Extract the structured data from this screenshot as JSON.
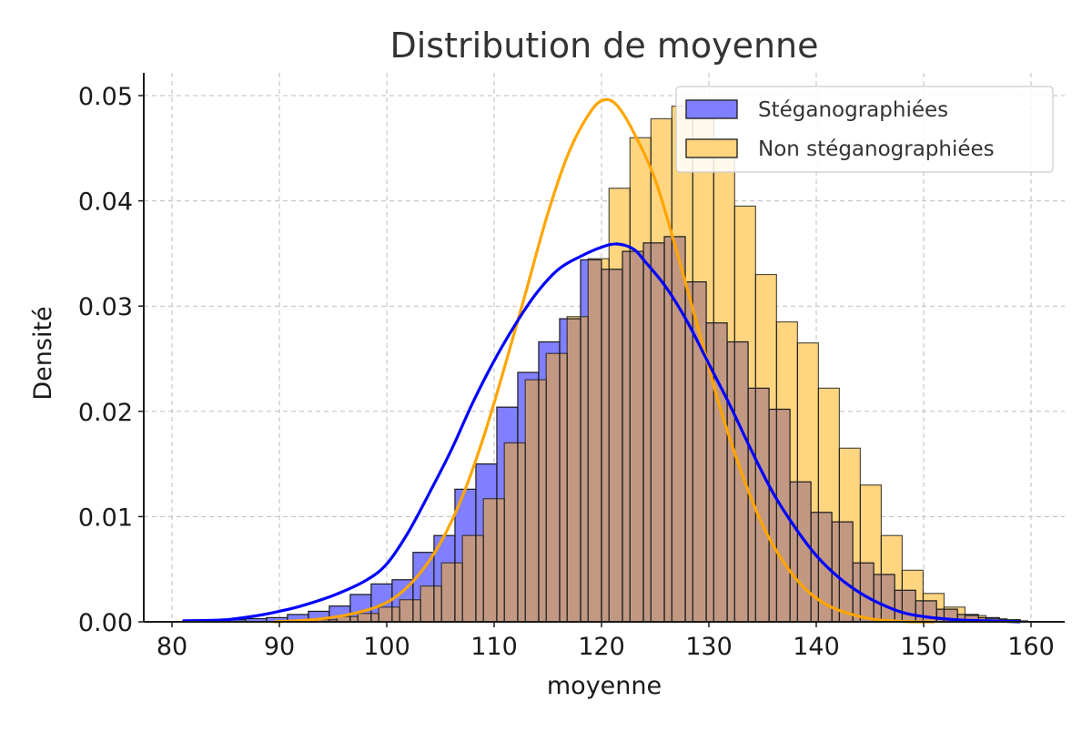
{
  "chart_data": {
    "type": "histogram",
    "title": "Distribution de moyenne",
    "xlabel": "moyenne",
    "ylabel": "Densité",
    "xlim": [
      77.8,
      163
    ],
    "ylim": [
      0,
      0.052
    ],
    "xticks": [
      80,
      90,
      100,
      110,
      120,
      130,
      140,
      150,
      160
    ],
    "yticks": [
      0.0,
      0.01,
      0.02,
      0.03,
      0.04,
      0.05
    ],
    "ytick_labels": [
      "0.00",
      "0.01",
      "0.02",
      "0.03",
      "0.04",
      "0.05"
    ],
    "grid": true,
    "legend": {
      "position": "top-right"
    },
    "colors": {
      "stego_fill": "#7f7fff",
      "stego_line": "#0000ff",
      "nonstego_fill": "#ffd580",
      "nonstego_line": "#ffa500",
      "overlap_fill": "#c29883",
      "bar_edge": "#1a1a1a"
    },
    "series": [
      {
        "name": "Stéganographiées",
        "bin_start": 81,
        "bin_width": 1.95,
        "values": [
          0.0001,
          0.0001,
          0.0002,
          0.0003,
          0.0004,
          0.0007,
          0.001,
          0.0015,
          0.0026,
          0.0036,
          0.004,
          0.0066,
          0.0082,
          0.0126,
          0.015,
          0.0204,
          0.0237,
          0.0266,
          0.0288,
          0.0344,
          0.0335,
          0.0352,
          0.036,
          0.0366,
          0.0323,
          0.0284,
          0.0266,
          0.0222,
          0.0202,
          0.0133,
          0.0104,
          0.0095,
          0.0056,
          0.0045,
          0.003,
          0.002,
          0.0012,
          0.0007,
          0.0004,
          0.0002
        ],
        "kde_x": [
          81,
          85,
          88,
          90,
          92,
          95,
          98,
          100,
          102,
          104,
          106,
          108,
          110,
          112,
          114,
          116,
          118,
          120,
          121.5,
          123,
          124,
          126,
          128,
          130,
          132,
          134,
          136,
          138,
          140,
          142,
          144,
          146,
          148,
          150,
          153,
          156,
          159
        ],
        "kde_y": [
          0.0001,
          0.0002,
          0.0006,
          0.001,
          0.0015,
          0.0025,
          0.0039,
          0.0055,
          0.0085,
          0.0123,
          0.0163,
          0.0208,
          0.0248,
          0.0283,
          0.0313,
          0.0335,
          0.0347,
          0.0356,
          0.0359,
          0.0354,
          0.0343,
          0.0318,
          0.0285,
          0.0245,
          0.0205,
          0.0162,
          0.0122,
          0.009,
          0.0063,
          0.0043,
          0.0028,
          0.0017,
          0.0009,
          0.0005,
          0.0002,
          0.0001,
          0.0
        ]
      },
      {
        "name": "Non stéganographiées",
        "bin_start": 89.5,
        "bin_width": 1.95,
        "values": [
          0.0,
          0.0001,
          0.0002,
          0.0005,
          0.0008,
          0.0014,
          0.0021,
          0.0034,
          0.0056,
          0.0082,
          0.0117,
          0.017,
          0.023,
          0.0255,
          0.029,
          0.0345,
          0.0412,
          0.046,
          0.0478,
          0.049,
          0.0478,
          0.0448,
          0.0395,
          0.033,
          0.0285,
          0.0265,
          0.0222,
          0.0165,
          0.013,
          0.0082,
          0.0049,
          0.0027,
          0.0014,
          0.0006,
          0.0003,
          0.0001
        ],
        "kde_x": [
          89.5,
          93,
          96,
          99,
          101,
          103,
          105,
          107,
          109,
          111,
          113,
          115,
          117,
          119,
          120.3,
          121.5,
          123,
          125,
          127,
          129,
          131,
          133,
          135,
          137,
          139,
          141,
          143,
          145,
          147,
          149,
          151
        ],
        "kde_y": [
          0.0,
          0.0002,
          0.0006,
          0.0014,
          0.0025,
          0.0045,
          0.0075,
          0.0118,
          0.0175,
          0.0243,
          0.0315,
          0.0388,
          0.0447,
          0.0485,
          0.0496,
          0.049,
          0.0465,
          0.042,
          0.0352,
          0.0279,
          0.0205,
          0.0143,
          0.0092,
          0.0056,
          0.0031,
          0.0016,
          0.0008,
          0.0003,
          0.0001,
          0.0,
          0.0
        ]
      }
    ]
  }
}
